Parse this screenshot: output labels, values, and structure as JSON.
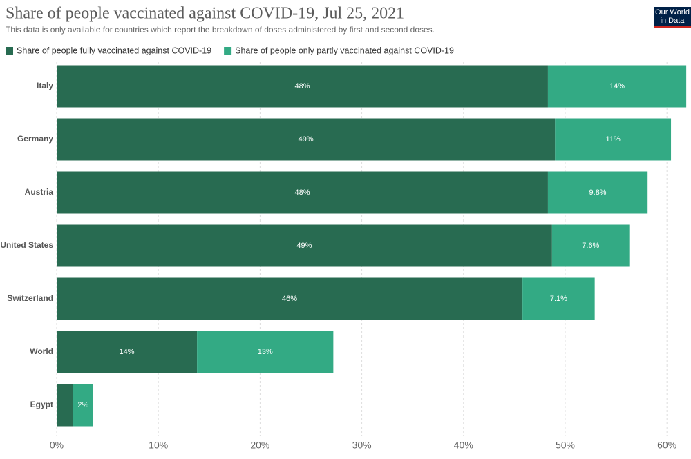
{
  "logo": [
    "Our World",
    "in Data"
  ],
  "chart_data": {
    "type": "stacked-bar-horizontal",
    "title": "Share of people vaccinated against COVID-19, Jul 25, 2021",
    "subtitle": "This data is only available for countries which report the breakdown of doses administered by first and second doses.",
    "categories": [
      "Italy",
      "Germany",
      "Austria",
      "United States",
      "Switzerland",
      "World",
      "Egypt"
    ],
    "series": [
      {
        "name": "Share of people fully vaccinated against COVID-19",
        "color": "#286b51",
        "values": [
          48.3,
          49.0,
          48.3,
          48.7,
          45.8,
          13.8,
          1.6
        ],
        "value_labels": [
          "48%",
          "49%",
          "48%",
          "49%",
          "46%",
          "14%",
          null
        ]
      },
      {
        "name": "Share of people only partly vaccinated against COVID-19",
        "color": "#33aa84",
        "values": [
          13.6,
          11.4,
          9.8,
          7.6,
          7.1,
          13.4,
          2.0
        ],
        "value_labels": [
          "14%",
          "11%",
          "9.8%",
          "7.6%",
          "7.1%",
          "13%",
          "2%"
        ]
      }
    ],
    "xlim": [
      0,
      62
    ],
    "xticks": [
      {
        "value": 0,
        "label": "0%"
      },
      {
        "value": 10,
        "label": "10%"
      },
      {
        "value": 20,
        "label": "20%"
      },
      {
        "value": 30,
        "label": "30%"
      },
      {
        "value": 40,
        "label": "40%"
      },
      {
        "value": 50,
        "label": "50%"
      },
      {
        "value": 60,
        "label": "60%"
      }
    ],
    "grid": true
  }
}
